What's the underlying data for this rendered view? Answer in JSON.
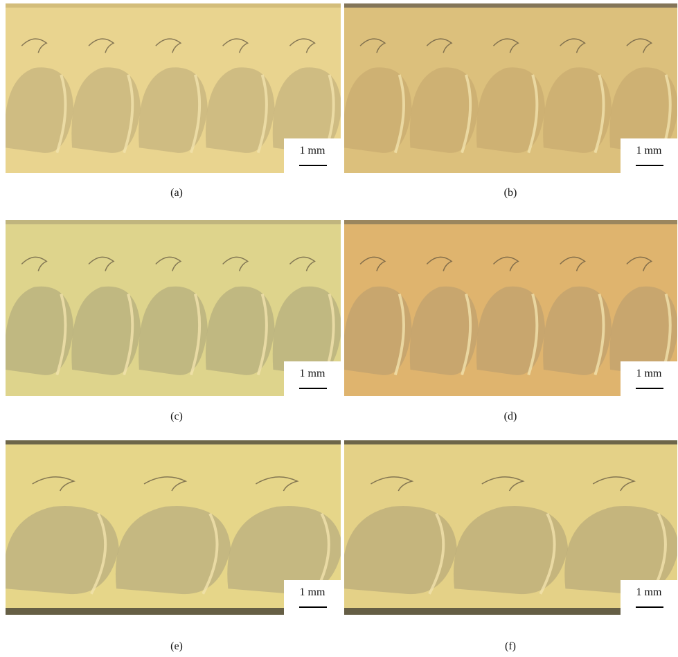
{
  "panels": [
    {
      "label": "(a)",
      "scale_bar": "1 mm"
    },
    {
      "label": "(b)",
      "scale_bar": "1 mm"
    },
    {
      "label": "(c)",
      "scale_bar": "1 mm"
    },
    {
      "label": "(d)",
      "scale_bar": "1 mm"
    },
    {
      "label": "(e)",
      "scale_bar": "1 mm"
    },
    {
      "label": "(f)",
      "scale_bar": "1 mm"
    }
  ]
}
